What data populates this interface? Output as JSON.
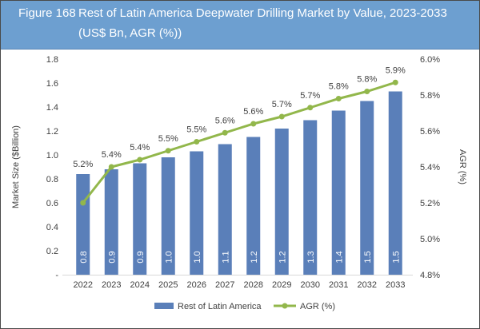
{
  "header": {
    "figure_label": "Figure 168",
    "title": "Rest of Latin America Deepwater Drilling Market by Value, 2023-2033 (US$ Bn, AGR (%))"
  },
  "chart_data": {
    "type": "bar+line",
    "categories": [
      "2022",
      "2023",
      "2024",
      "2025",
      "2026",
      "2027",
      "2028",
      "2029",
      "2030",
      "2031",
      "2032",
      "2033"
    ],
    "series": [
      {
        "name": "Rest of Latin America",
        "axis": "left",
        "type": "bar",
        "color": "#5a7fb9",
        "values": [
          0.84,
          0.88,
          0.93,
          0.98,
          1.03,
          1.09,
          1.15,
          1.22,
          1.29,
          1.37,
          1.45,
          1.53
        ],
        "labels": [
          "0.8",
          "0.9",
          "0.9",
          "1.0",
          "1.0",
          "1.1",
          "1.2",
          "1.2",
          "1.3",
          "1.4",
          "1.5",
          "1.5"
        ]
      },
      {
        "name": "AGR (%)",
        "axis": "right",
        "type": "line",
        "color": "#92b74b",
        "values": [
          5.2,
          5.4,
          5.44,
          5.49,
          5.54,
          5.59,
          5.64,
          5.68,
          5.73,
          5.78,
          5.82,
          5.87
        ],
        "labels": [
          "5.2%",
          "5.4%",
          "5.4%",
          "5.5%",
          "5.5%",
          "5.6%",
          "5.6%",
          "5.7%",
          "5.7%",
          "5.8%",
          "5.8%",
          "5.9%"
        ]
      }
    ],
    "ylabel": "Market Size ($Billion)",
    "y2label": "AGR (%)",
    "ylim": [
      0,
      1.8
    ],
    "y2lim": [
      4.8,
      6.0
    ],
    "yticks": [
      "-",
      "0.2",
      "0.4",
      "0.6",
      "0.8",
      "1.0",
      "1.2",
      "1.4",
      "1.6",
      "1.8"
    ],
    "y2ticks": [
      "4.8%",
      "5.0%",
      "5.2%",
      "5.4%",
      "5.6%",
      "5.8%",
      "6.0%"
    ],
    "legend": "bottom"
  }
}
